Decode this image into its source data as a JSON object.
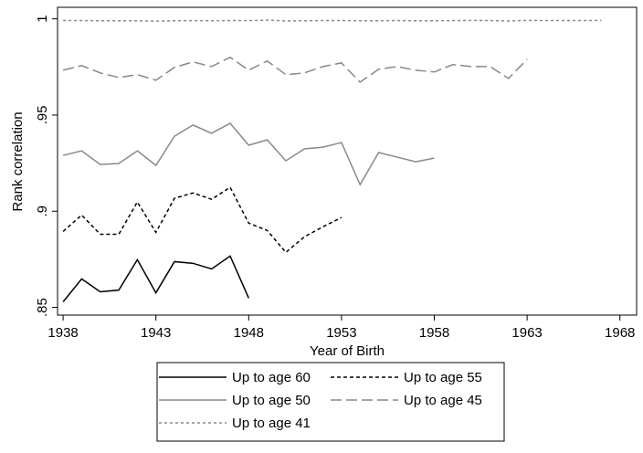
{
  "chart_data": {
    "type": "line",
    "x_label": "Year of Birth",
    "y_label": "Rank correlation",
    "xlim": [
      1937.7,
      1968.9
    ],
    "ylim": [
      0.846,
      1.006
    ],
    "xticks": [
      1938,
      1943,
      1948,
      1953,
      1958,
      1963,
      1968
    ],
    "yticks": [
      {
        "value": 0.85,
        "label": ".85"
      },
      {
        "value": 0.9,
        "label": ".9"
      },
      {
        "value": 0.95,
        "label": ".95"
      },
      1
    ],
    "x": [
      1938,
      1939,
      1940,
      1941,
      1942,
      1943,
      1944,
      1945,
      1946,
      1947,
      1948,
      1949,
      1950,
      1951,
      1952,
      1953,
      1954,
      1955,
      1956,
      1957,
      1958,
      1959,
      1960,
      1961,
      1962,
      1963,
      1964,
      1965,
      1966,
      1967
    ],
    "series": [
      {
        "name": "Up to age 60",
        "color": "#000000",
        "dash": "none",
        "values": [
          0.8529,
          0.8648,
          0.8581,
          0.859,
          0.8748,
          0.8576,
          0.8738,
          0.8729,
          0.87,
          0.8767,
          0.8548,
          null,
          null,
          null,
          null,
          null,
          null,
          null,
          null,
          null,
          null,
          null,
          null,
          null,
          null,
          null,
          null,
          null,
          null,
          null
        ]
      },
      {
        "name": "Up to age 55",
        "color": "#000000",
        "dash": "4,3",
        "values": [
          0.8895,
          0.898,
          0.888,
          0.888,
          0.9048,
          0.889,
          0.9067,
          0.9095,
          0.9062,
          0.9124,
          0.8938,
          0.89,
          0.8786,
          0.8867,
          0.8919,
          0.8967,
          null,
          null,
          null,
          null,
          null,
          null,
          null,
          null,
          null,
          null,
          null,
          null,
          null,
          null
        ]
      },
      {
        "name": "Up to age 50",
        "color": "#888888",
        "dash": "none",
        "values": [
          0.929,
          0.9314,
          0.9243,
          0.9248,
          0.9314,
          0.9238,
          0.939,
          0.9448,
          0.9405,
          0.9457,
          0.9343,
          0.9371,
          0.9262,
          0.9324,
          0.9333,
          0.9357,
          0.9138,
          0.9305,
          0.9281,
          0.9257,
          0.9276,
          null,
          null,
          null,
          null,
          null,
          null,
          null,
          null,
          null
        ]
      },
      {
        "name": "Up to age 45",
        "color": "#888888",
        "dash": "12,5",
        "values": [
          0.9733,
          0.9757,
          0.9719,
          0.9695,
          0.971,
          0.9681,
          0.9748,
          0.9776,
          0.9752,
          0.98,
          0.9733,
          0.9781,
          0.971,
          0.9719,
          0.9752,
          0.9771,
          0.9671,
          0.9738,
          0.9752,
          0.9733,
          0.9724,
          0.9762,
          0.9752,
          0.9752,
          0.969,
          0.979,
          null,
          null,
          null,
          null
        ]
      },
      {
        "name": "Up to age 41",
        "color": "#888888",
        "dash": "3,3",
        "values": [
          0.9991,
          0.9991,
          0.999,
          0.999,
          0.999,
          0.9988,
          0.999,
          0.9991,
          0.999,
          0.9991,
          0.9991,
          0.9993,
          0.9989,
          0.999,
          0.9991,
          0.9991,
          0.999,
          0.999,
          0.9991,
          0.999,
          0.999,
          0.9991,
          0.9992,
          0.9991,
          0.9989,
          0.9992,
          0.9991,
          0.9991,
          0.9991,
          0.9992
        ]
      }
    ]
  }
}
